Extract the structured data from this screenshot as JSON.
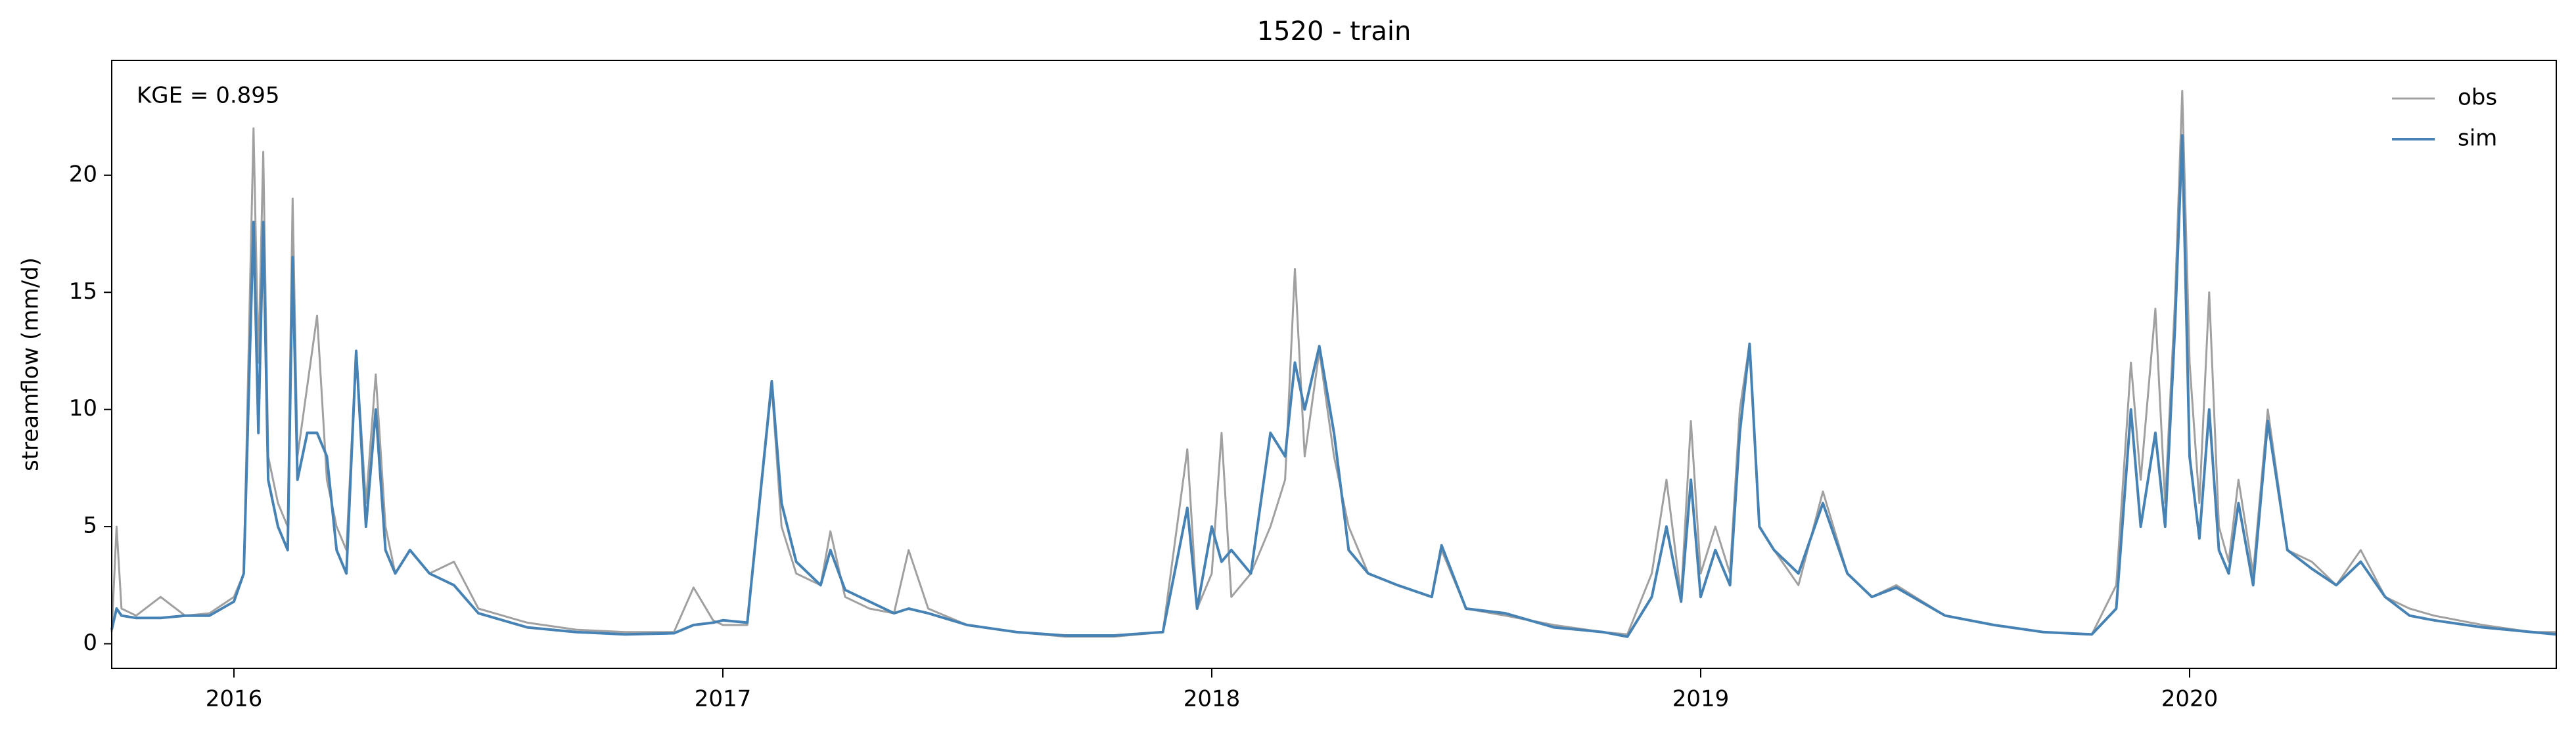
{
  "chart_data": {
    "type": "line",
    "title": "1520 - train",
    "ylabel": "streamflow (mm/d)",
    "annotation": "KGE = 0.895",
    "legend": "upper right",
    "x": [
      2015.75,
      2015.76,
      2015.77,
      2015.8,
      2015.85,
      2015.9,
      2015.95,
      2016.0,
      2016.02,
      2016.04,
      2016.05,
      2016.06,
      2016.07,
      2016.09,
      2016.11,
      2016.12,
      2016.13,
      2016.15,
      2016.17,
      2016.19,
      2016.21,
      2016.23,
      2016.25,
      2016.27,
      2016.29,
      2016.31,
      2016.33,
      2016.36,
      2016.4,
      2016.45,
      2016.5,
      2016.6,
      2016.7,
      2016.8,
      2016.9,
      2016.94,
      2016.98,
      2017.0,
      2017.05,
      2017.1,
      2017.12,
      2017.15,
      2017.2,
      2017.22,
      2017.25,
      2017.3,
      2017.35,
      2017.38,
      2017.42,
      2017.5,
      2017.6,
      2017.7,
      2017.8,
      2017.9,
      2017.95,
      2017.97,
      2018.0,
      2018.02,
      2018.04,
      2018.08,
      2018.12,
      2018.15,
      2018.17,
      2018.19,
      2018.22,
      2018.25,
      2018.28,
      2018.32,
      2018.38,
      2018.45,
      2018.47,
      2018.52,
      2018.6,
      2018.7,
      2018.8,
      2018.85,
      2018.9,
      2018.93,
      2018.96,
      2018.98,
      2019.0,
      2019.03,
      2019.06,
      2019.08,
      2019.1,
      2019.12,
      2019.15,
      2019.2,
      2019.25,
      2019.3,
      2019.35,
      2019.4,
      2019.5,
      2019.6,
      2019.7,
      2019.8,
      2019.85,
      2019.88,
      2019.9,
      2019.93,
      2019.95,
      2019.97,
      2019.985,
      2020.0,
      2020.02,
      2020.04,
      2020.06,
      2020.08,
      2020.1,
      2020.13,
      2020.16,
      2020.2,
      2020.25,
      2020.3,
      2020.35,
      2020.4,
      2020.45,
      2020.5,
      2020.6,
      2020.7,
      2020.75
    ],
    "series": [
      {
        "name": "obs",
        "color": "#a0a0a0",
        "values": [
          0.5,
          5,
          1.5,
          1.2,
          2.0,
          1.2,
          1.3,
          2,
          3,
          22,
          12,
          21,
          8,
          6,
          5,
          19,
          8,
          11,
          14,
          7,
          5,
          4,
          12.5,
          6,
          11.5,
          5,
          3,
          4,
          3,
          3.5,
          1.5,
          0.9,
          0.6,
          0.5,
          0.5,
          2.4,
          1.0,
          0.8,
          0.8,
          11,
          5,
          3,
          2.5,
          4.8,
          2,
          1.5,
          1.3,
          4,
          1.5,
          0.8,
          0.5,
          0.3,
          0.3,
          0.5,
          8.3,
          1.5,
          3,
          9,
          2,
          3,
          5,
          7,
          16,
          8,
          12.5,
          8,
          5,
          3,
          2.5,
          2,
          4,
          1.5,
          1.2,
          0.8,
          0.5,
          0.4,
          3,
          7,
          2,
          9.5,
          3,
          5,
          3,
          10,
          12.8,
          5,
          4,
          2.5,
          6.5,
          3,
          2,
          2.5,
          1.2,
          0.8,
          0.5,
          0.4,
          2.5,
          12,
          7,
          14.3,
          6,
          14.6,
          23.6,
          12,
          6,
          15,
          5,
          3.5,
          7,
          3,
          10,
          4,
          3.5,
          2.5,
          4,
          2,
          1.5,
          1.2,
          0.8,
          0.5,
          0.5
        ]
      },
      {
        "name": "sim",
        "color": "#4682b4",
        "values": [
          0.6,
          1.5,
          1.2,
          1.1,
          1.1,
          1.2,
          1.2,
          1.8,
          3,
          18,
          9,
          18,
          7,
          5,
          4,
          16.5,
          7,
          9,
          9,
          8,
          4,
          3,
          12.5,
          5,
          10,
          4,
          3,
          4,
          3,
          2.5,
          1.3,
          0.7,
          0.5,
          0.4,
          0.45,
          0.8,
          0.9,
          1.0,
          0.9,
          11.2,
          6,
          3.5,
          2.5,
          4,
          2.3,
          1.8,
          1.3,
          1.5,
          1.3,
          0.8,
          0.5,
          0.35,
          0.35,
          0.5,
          5.8,
          1.5,
          5,
          3.5,
          4,
          3,
          9,
          8,
          12,
          10,
          12.7,
          9,
          4,
          3,
          2.5,
          2,
          4.2,
          1.5,
          1.3,
          0.7,
          0.5,
          0.3,
          2,
          5,
          1.8,
          7,
          2,
          4,
          2.5,
          9,
          12.8,
          5,
          4,
          3,
          6,
          3,
          2,
          2.4,
          1.2,
          0.8,
          0.5,
          0.4,
          1.5,
          10,
          5,
          9,
          5,
          13.5,
          21.7,
          8,
          4.5,
          10,
          4,
          3,
          6,
          2.5,
          9.5,
          4,
          3.2,
          2.5,
          3.5,
          2,
          1.2,
          1.0,
          0.7,
          0.5,
          0.4
        ]
      }
    ],
    "xlim": [
      2015.75,
      2020.75
    ],
    "xticks": [
      2016,
      2017,
      2018,
      2019,
      2020
    ],
    "ylim": [
      -1.05,
      24.9
    ],
    "yticks": [
      0,
      5,
      10,
      15,
      20
    ],
    "grid": false
  }
}
